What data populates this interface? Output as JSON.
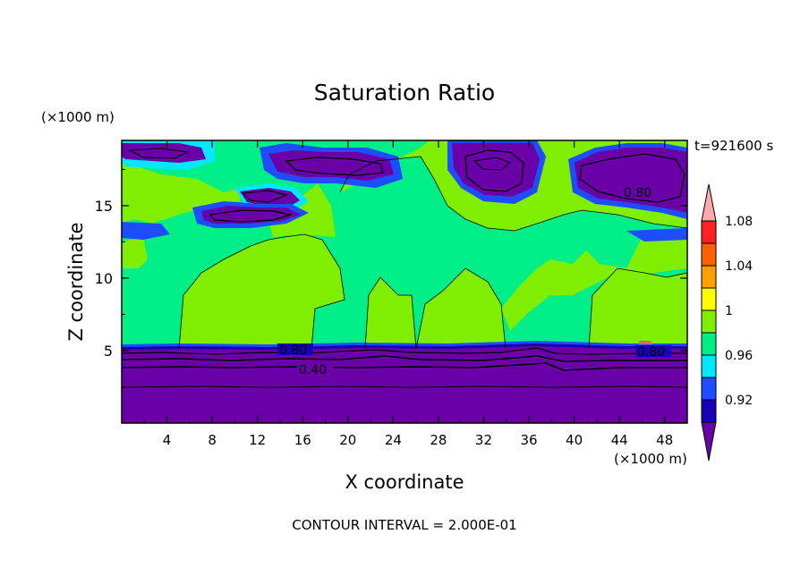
{
  "chart_data": {
    "type": "heatmap",
    "title": "Saturation Ratio",
    "xlabel": "X coordinate",
    "ylabel": "Z coordinate",
    "x_unit": "(×1000 m)",
    "y_unit": "(×1000 m)",
    "time_label": "t=921600 s",
    "footer": "CONTOUR INTERVAL = 2.000E-01",
    "xlim": [
      0,
      50
    ],
    "ylim": [
      0,
      19.5
    ],
    "x_ticks": [
      "4",
      "8",
      "12",
      "16",
      "20",
      "24",
      "28",
      "32",
      "36",
      "40",
      "44",
      "48"
    ],
    "y_ticks": [
      "5",
      "10",
      "15"
    ],
    "colorbar": {
      "labels": [
        "0.92",
        "0.96",
        "1",
        "1.04",
        "1.08"
      ],
      "colors": [
        "#6a00a8",
        "#1a00b4",
        "#1e4cff",
        "#00e8ff",
        "#00ee88",
        "#80ee00",
        "#ffff00",
        "#ffa000",
        "#ff6000",
        "#ff2020",
        "#ffaaaa"
      ]
    },
    "contour_labels": [
      "0.80",
      "0.80",
      "0.80",
      "0.40"
    ]
  }
}
